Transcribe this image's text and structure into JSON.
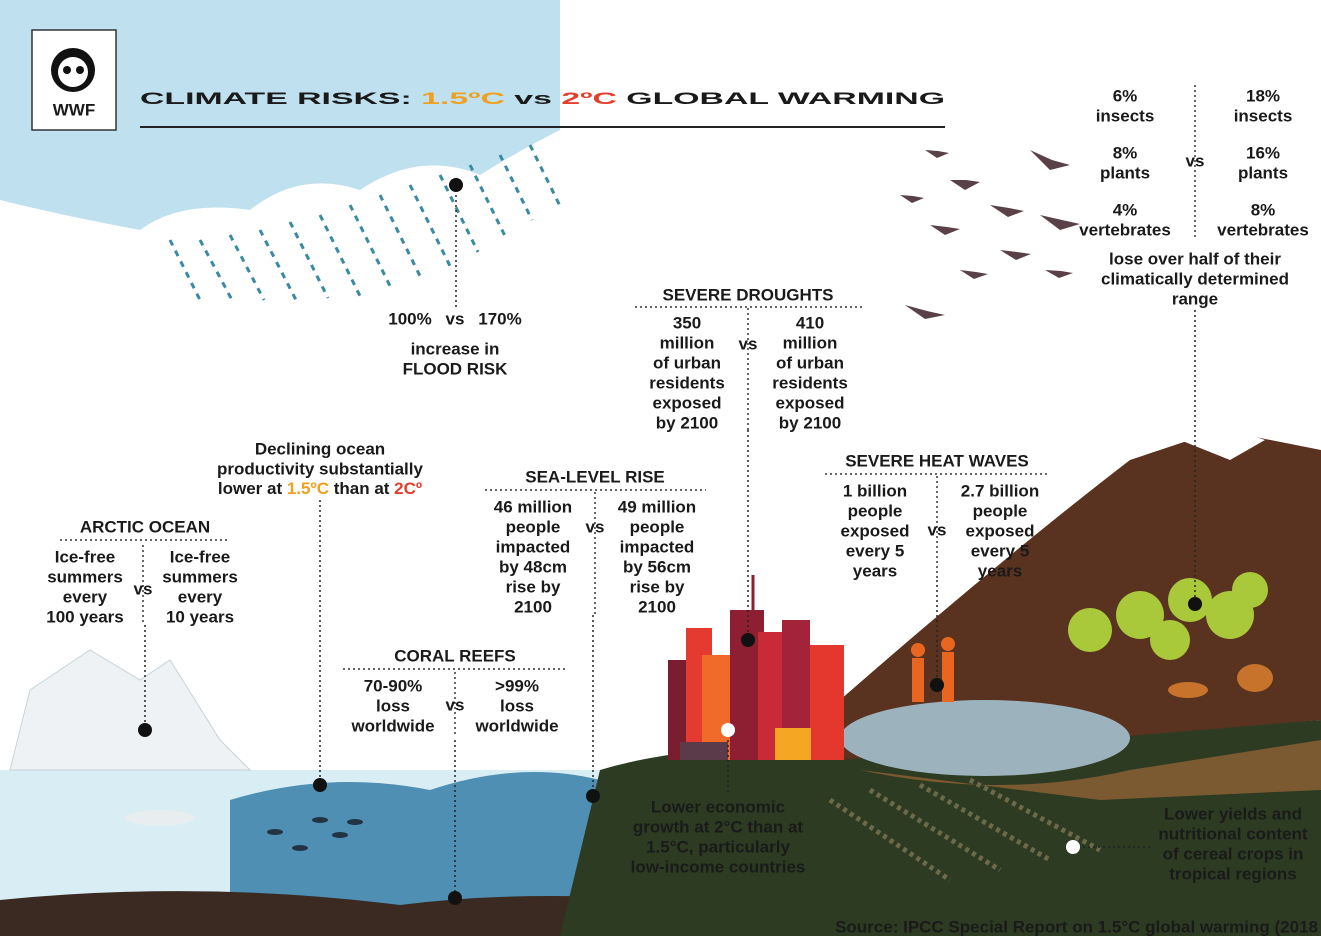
{
  "logo": "WWF",
  "title": {
    "prefix": "CLIMATE RISKS: ",
    "low": "1.5ºC",
    "vs": " vs ",
    "high": "2ºC",
    "suffix": " GLOBAL WARMING"
  },
  "species": {
    "low": [
      "6%",
      "insects",
      "8%",
      "plants",
      "4%",
      "vertebrates"
    ],
    "vs": "vs",
    "high": [
      "18%",
      "insects",
      "16%",
      "plants",
      "8%",
      "vertebrates"
    ],
    "caption": [
      "lose over half of their",
      "climatically determined",
      "range"
    ]
  },
  "flood": {
    "low": "100%",
    "vs": "vs",
    "high": "170%",
    "text": [
      "increase in",
      "FLOOD RISK"
    ]
  },
  "droughts": {
    "title": "SEVERE DROUGHTS",
    "low": [
      "350",
      "million",
      "of urban",
      "residents",
      "exposed",
      "by 2100"
    ],
    "vs": "vs",
    "high": [
      "410",
      "million",
      "of urban",
      "residents",
      "exposed",
      "by 2100"
    ]
  },
  "ocean": {
    "lines": [
      "Declining ocean",
      "productivity substantially"
    ],
    "last": [
      "lower at ",
      "1.5ºC",
      " than at ",
      "2Cº"
    ]
  },
  "arctic": {
    "title": "ARCTIC OCEAN",
    "low": [
      "Ice-free",
      "summers",
      "every",
      "100 years"
    ],
    "vs": "vs",
    "high": [
      "Ice-free",
      "summers",
      "every",
      "10 years"
    ]
  },
  "sea_level": {
    "title": "SEA-LEVEL RISE",
    "low": [
      "46 million",
      "people",
      "impacted",
      "by 48cm",
      "rise by",
      "2100"
    ],
    "vs": "vs",
    "high": [
      "49 million",
      "people",
      "impacted",
      "by 56cm",
      "rise by",
      "2100"
    ]
  },
  "heat_waves": {
    "title": "SEVERE HEAT WAVES",
    "low": [
      "1 billion",
      "people",
      "exposed",
      "every 5",
      "years"
    ],
    "vs": "vs",
    "high": [
      "2.7 billion",
      "people",
      "exposed",
      "every 5",
      "years"
    ]
  },
  "coral": {
    "title": "CORAL REEFS",
    "low": [
      "70-90%",
      "loss",
      "worldwide"
    ],
    "vs": "vs",
    "high": [
      ">99%",
      "loss",
      "worldwide"
    ]
  },
  "economy": [
    "Lower economic",
    "growth at 2°C than at",
    "1.5°C, particularly",
    "low-income countries"
  ],
  "crops": [
    "Lower yields and",
    "nutritional content",
    "of cereal crops in",
    "tropical regions"
  ],
  "source": "Source: IPCC Special Report on 1.5°C global warming (2018"
}
